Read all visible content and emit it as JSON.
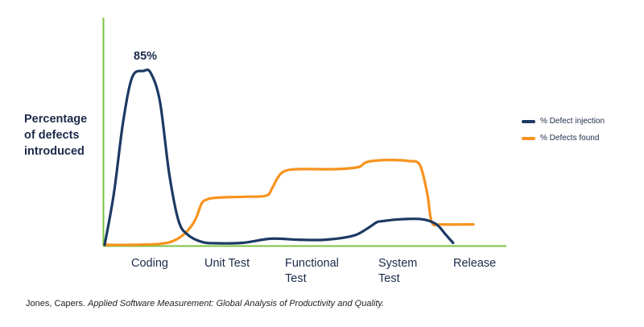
{
  "chart_data": {
    "type": "line",
    "ylabel": [
      "Percentage",
      "of defects",
      "introduced"
    ],
    "categories": [
      [
        "Coding"
      ],
      [
        "Unit Test"
      ],
      [
        "Functional",
        "Test"
      ],
      [
        "System",
        "Test"
      ],
      [
        "Release"
      ]
    ],
    "annotation": "85%",
    "ylim": [
      0,
      100
    ],
    "grid": false,
    "legend_position": "right",
    "series": [
      {
        "name": "% Defect injection",
        "color": "#1c3a63",
        "x": [
          0,
          0.1,
          0.2,
          0.3,
          0.42,
          0.5,
          0.6,
          0.7,
          0.8,
          0.9,
          1.05,
          1.2,
          1.5,
          1.8,
          2.1,
          2.4,
          2.7,
          2.85,
          2.95,
          3.0,
          3.2,
          3.45,
          3.6,
          3.7,
          3.78
        ],
        "y": [
          0,
          25,
          60,
          82,
          85,
          84,
          70,
          35,
          12,
          5,
          1.5,
          0.8,
          1,
          3,
          2.5,
          2.5,
          4.5,
          8,
          11,
          11.5,
          12.5,
          12.5,
          10,
          5,
          1
        ]
      },
      {
        "name": "% Defects found",
        "color": "#f7931e",
        "x": [
          0,
          0.3,
          0.6,
          0.75,
          0.88,
          0.98,
          1.05,
          1.1,
          1.2,
          1.5,
          1.75,
          1.82,
          1.88,
          1.95,
          2.1,
          2.5,
          2.75,
          2.82,
          2.9,
          3.1,
          3.3,
          3.42,
          3.5,
          3.55,
          3.65,
          4.0
        ],
        "y": [
          0,
          0,
          0.5,
          2,
          6,
          12,
          20,
          22,
          23,
          23.5,
          24,
          28,
          33,
          36,
          37,
          37,
          38,
          40,
          41,
          41.5,
          41,
          39,
          25,
          11,
          10,
          10
        ]
      }
    ]
  },
  "caption": {
    "author": "Jones, Capers.",
    "title": "Applied Software Measurement: Global Analysis of Productivity and Quality."
  }
}
